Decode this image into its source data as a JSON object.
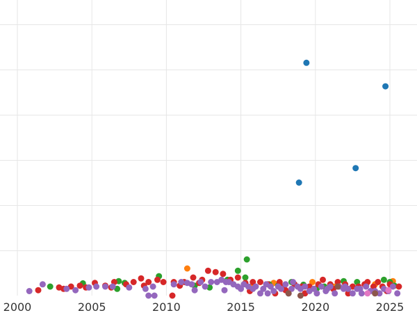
{
  "chart_data": {
    "type": "scatter",
    "title": "",
    "xlabel": "",
    "ylabel": "",
    "grid": true,
    "legend": "none",
    "xlim": [
      2000,
      2026.6
    ],
    "ylim": [
      0,
      6.5
    ],
    "x_ticks": [
      2000,
      2005,
      2010,
      2015,
      2020,
      2025
    ],
    "x_tick_labels": [
      "2000",
      "2005",
      "2010",
      "2015",
      "2020",
      "2025"
    ],
    "y_grid": [
      1,
      2,
      3,
      4,
      5,
      6
    ],
    "colors": {
      "blue": "#1f77b4",
      "orange": "#ff7f0e",
      "green": "#2ca02c",
      "red": "#d62728",
      "purple": "#9467bd",
      "brown": "#8c564b",
      "pink": "#e377c2"
    },
    "series": [
      {
        "color": "#1f77b4",
        "points": [
          [
            2019.4,
            5.15
          ],
          [
            2024.7,
            4.63
          ],
          [
            2022.7,
            2.82
          ],
          [
            2018.9,
            2.5
          ]
        ]
      },
      {
        "color": "#ff7f0e",
        "points": [
          [
            2011.4,
            0.6
          ],
          [
            2017.2,
            0.28
          ],
          [
            2019.8,
            0.3
          ],
          [
            2024.0,
            0.25
          ],
          [
            2025.2,
            0.32
          ],
          [
            2021.3,
            0.2
          ],
          [
            2015.7,
            0.2
          ]
        ]
      },
      {
        "color": "#2ca02c",
        "points": [
          [
            2002.2,
            0.2
          ],
          [
            2004.4,
            0.27
          ],
          [
            2006.8,
            0.32
          ],
          [
            2007.2,
            0.28
          ],
          [
            2009.5,
            0.43
          ],
          [
            2012.9,
            0.18
          ],
          [
            2014.8,
            0.55
          ],
          [
            2015.4,
            0.8
          ],
          [
            2015.3,
            0.4
          ],
          [
            2017.5,
            0.22
          ],
          [
            2018.4,
            0.3
          ],
          [
            2019.2,
            0.24
          ],
          [
            2020.6,
            0.2
          ],
          [
            2021.9,
            0.32
          ],
          [
            2022.8,
            0.3
          ],
          [
            2024.6,
            0.35
          ],
          [
            2025.3,
            0.22
          ],
          [
            2006.7,
            0.15
          ],
          [
            2011.9,
            0.22
          ],
          [
            2014.1,
            0.35
          ],
          [
            2016.9,
            0.25
          ],
          [
            2023.4,
            0.22
          ],
          [
            2020.1,
            0.16
          ],
          [
            2025.0,
            0.3
          ]
        ]
      },
      {
        "color": "#d62728",
        "points": [
          [
            2001.4,
            0.12
          ],
          [
            2002.8,
            0.18
          ],
          [
            2003.6,
            0.2
          ],
          [
            2004.2,
            0.22
          ],
          [
            2005.2,
            0.28
          ],
          [
            2005.9,
            0.22
          ],
          [
            2006.5,
            0.3
          ],
          [
            2007.3,
            0.25
          ],
          [
            2007.8,
            0.3
          ],
          [
            2008.3,
            0.38
          ],
          [
            2008.8,
            0.3
          ],
          [
            2009.4,
            0.35
          ],
          [
            2009.8,
            0.3
          ],
          [
            2010.4,
            0.0
          ],
          [
            2010.5,
            0.3
          ],
          [
            2011.2,
            0.3
          ],
          [
            2011.8,
            0.4
          ],
          [
            2012.4,
            0.35
          ],
          [
            2012.8,
            0.55
          ],
          [
            2013.3,
            0.52
          ],
          [
            2013.8,
            0.48
          ],
          [
            2014.3,
            0.35
          ],
          [
            2014.8,
            0.4
          ],
          [
            2015.3,
            0.28
          ],
          [
            2015.8,
            0.3
          ],
          [
            2016.3,
            0.3
          ],
          [
            2016.8,
            0.25
          ],
          [
            2017.3,
            0.05
          ],
          [
            2017.6,
            0.3
          ],
          [
            2018.0,
            0.12
          ],
          [
            2018.6,
            0.25
          ],
          [
            2019.1,
            0.2
          ],
          [
            2019.6,
            0.2
          ],
          [
            2020.2,
            0.25
          ],
          [
            2020.5,
            0.35
          ],
          [
            2021.0,
            0.25
          ],
          [
            2021.5,
            0.3
          ],
          [
            2022.0,
            0.25
          ],
          [
            2022.2,
            0.05
          ],
          [
            2022.9,
            0.2
          ],
          [
            2023.3,
            0.25
          ],
          [
            2023.5,
            0.3
          ],
          [
            2023.9,
            0.2
          ],
          [
            2024.2,
            0.3
          ],
          [
            2024.5,
            0.2
          ],
          [
            2025.0,
            0.25
          ],
          [
            2025.6,
            0.2
          ],
          [
            2003.1,
            0.15
          ],
          [
            2004.6,
            0.18
          ],
          [
            2006.3,
            0.18
          ],
          [
            2008.5,
            0.22
          ],
          [
            2010.9,
            0.22
          ],
          [
            2012.2,
            0.28
          ],
          [
            2015.6,
            0.1
          ],
          [
            2017.8,
            0.2
          ],
          [
            2019.3,
            0.05
          ],
          [
            2021.2,
            0.15
          ],
          [
            2022.5,
            0.2
          ],
          [
            2024.8,
            0.1
          ]
        ]
      },
      {
        "color": "#9467bd",
        "points": [
          [
            2000.8,
            0.1
          ],
          [
            2001.7,
            0.25
          ],
          [
            2003.3,
            0.15
          ],
          [
            2003.9,
            0.12
          ],
          [
            2004.8,
            0.18
          ],
          [
            2005.3,
            0.2
          ],
          [
            2005.9,
            0.2
          ],
          [
            2006.4,
            0.2
          ],
          [
            2007.5,
            0.18
          ],
          [
            2008.6,
            0.15
          ],
          [
            2009.1,
            0.2
          ],
          [
            2008.8,
            0.0
          ],
          [
            2009.2,
            0.0
          ],
          [
            2010.5,
            0.25
          ],
          [
            2011.0,
            0.3
          ],
          [
            2011.4,
            0.28
          ],
          [
            2011.7,
            0.25
          ],
          [
            2011.9,
            0.12
          ],
          [
            2012.3,
            0.3
          ],
          [
            2012.6,
            0.2
          ],
          [
            2013.0,
            0.3
          ],
          [
            2013.4,
            0.3
          ],
          [
            2013.7,
            0.35
          ],
          [
            2013.9,
            0.12
          ],
          [
            2014.2,
            0.3
          ],
          [
            2014.5,
            0.25
          ],
          [
            2014.8,
            0.2
          ],
          [
            2015.0,
            0.15
          ],
          [
            2015.2,
            0.25
          ],
          [
            2015.5,
            0.2
          ],
          [
            2015.8,
            0.15
          ],
          [
            2016.0,
            0.2
          ],
          [
            2016.3,
            0.05
          ],
          [
            2016.5,
            0.15
          ],
          [
            2016.7,
            0.25
          ],
          [
            2017.0,
            0.2
          ],
          [
            2017.2,
            0.1
          ],
          [
            2017.5,
            0.2
          ],
          [
            2017.7,
            0.15
          ],
          [
            2018.0,
            0.25
          ],
          [
            2018.2,
            0.05
          ],
          [
            2018.5,
            0.3
          ],
          [
            2018.8,
            0.2
          ],
          [
            2019.0,
            0.15
          ],
          [
            2019.3,
            0.2
          ],
          [
            2019.6,
            0.1
          ],
          [
            2019.9,
            0.15
          ],
          [
            2020.1,
            0.05
          ],
          [
            2020.4,
            0.2
          ],
          [
            2020.7,
            0.1
          ],
          [
            2021.0,
            0.2
          ],
          [
            2021.3,
            0.05
          ],
          [
            2021.6,
            0.2
          ],
          [
            2021.9,
            0.15
          ],
          [
            2022.2,
            0.15
          ],
          [
            2022.5,
            0.05
          ],
          [
            2022.8,
            0.15
          ],
          [
            2023.1,
            0.05
          ],
          [
            2023.4,
            0.2
          ],
          [
            2023.7,
            0.1
          ],
          [
            2024.0,
            0.1
          ],
          [
            2024.3,
            0.05
          ],
          [
            2024.6,
            0.15
          ],
          [
            2024.9,
            0.1
          ],
          [
            2025.2,
            0.2
          ],
          [
            2025.5,
            0.05
          ],
          [
            2014.0,
            0.3
          ],
          [
            2016.8,
            0.05
          ],
          [
            2018.4,
            0.15
          ],
          [
            2020.8,
            0.15
          ],
          [
            2022.0,
            0.2
          ],
          [
            2023.0,
            0.15
          ]
        ]
      },
      {
        "color": "#8c564b",
        "points": [
          [
            2018.2,
            0.05
          ],
          [
            2019.0,
            0.0
          ],
          [
            2021.5,
            0.2
          ],
          [
            2024.0,
            0.05
          ]
        ]
      },
      {
        "color": "#e377c2",
        "points": [
          [
            2023.5,
            0.05
          ],
          [
            2024.9,
            0.12
          ]
        ]
      }
    ]
  }
}
